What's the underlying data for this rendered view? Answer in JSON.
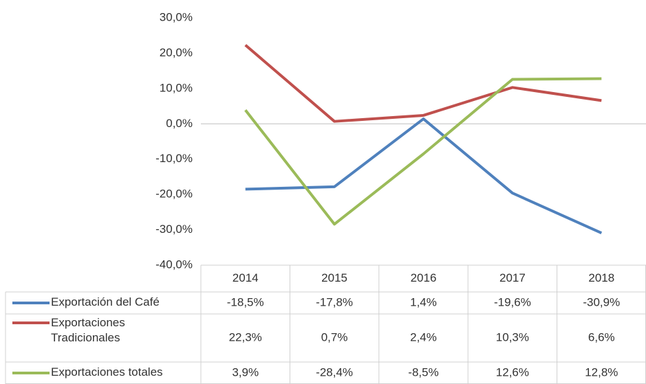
{
  "chart_data": {
    "type": "line",
    "categories": [
      "2014",
      "2015",
      "2016",
      "2017",
      "2018"
    ],
    "series": [
      {
        "name": "Exportación del Café",
        "color": "#4f81bd",
        "values": [
          -18.5,
          -17.8,
          1.4,
          -19.6,
          -30.9
        ],
        "value_labels": [
          "-18,5%",
          "-17,8%",
          "1,4%",
          "-19,6%",
          "-30,9%"
        ]
      },
      {
        "name": "Exportaciones Tradicionales",
        "color": "#c0504d",
        "values": [
          22.3,
          0.7,
          2.4,
          10.3,
          6.6
        ],
        "value_labels": [
          "22,3%",
          "0,7%",
          "2,4%",
          "10,3%",
          "6,6%"
        ]
      },
      {
        "name": "Exportaciones totales",
        "color": "#9bbb59",
        "values": [
          3.9,
          -28.4,
          -8.5,
          12.6,
          12.8
        ],
        "value_labels": [
          "3,9%",
          "-28,4%",
          "-8,5%",
          "12,6%",
          "12,8%"
        ]
      }
    ],
    "ylim": [
      -40,
      30
    ],
    "yticks": [
      {
        "value": -40,
        "label": "-40,0%"
      },
      {
        "value": -30,
        "label": "-30,0%"
      },
      {
        "value": -20,
        "label": "-20,0%"
      },
      {
        "value": -10,
        "label": "-10,0%"
      },
      {
        "value": 0,
        "label": "0,0%"
      },
      {
        "value": 10,
        "label": "10,0%"
      },
      {
        "value": 20,
        "label": "20,0%"
      },
      {
        "value": 30,
        "label": "30,0%"
      }
    ]
  }
}
